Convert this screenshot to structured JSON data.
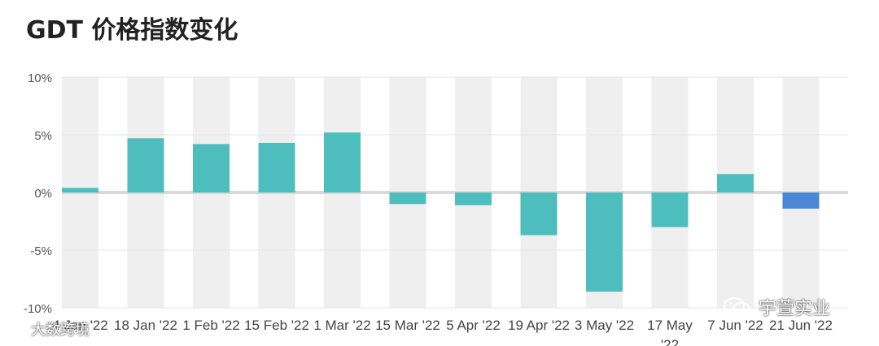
{
  "title": "GDT 价格指数变化",
  "chart_data": {
    "type": "bar",
    "title": "GDT 价格指数变化",
    "xlabel": "",
    "ylabel": "",
    "ylim": [
      -10,
      10
    ],
    "yticks": [
      10,
      5,
      0,
      -5,
      -10
    ],
    "ytick_labels": [
      "10%",
      "5%",
      "0%",
      "-5%",
      "-10%"
    ],
    "grid": true,
    "categories": [
      "4 Jan '22",
      "18 Jan '22",
      "1 Feb '22",
      "15 Feb '22",
      "1 Mar '22",
      "15 Mar '22",
      "5 Apr '22",
      "19 Apr '22",
      "3 May '22",
      "17 May '22",
      "7 Jun '22",
      "21 Jun '22"
    ],
    "values": [
      0.4,
      4.7,
      4.2,
      4.3,
      5.2,
      -1.0,
      -1.1,
      -3.7,
      -8.6,
      -3.0,
      1.6,
      -1.4
    ],
    "colors": {
      "default": "#4dbdbd",
      "highlight": "#4a88d6",
      "highlight_index": 11,
      "band": "#efefef",
      "zero_line": "#d9d9d9"
    }
  },
  "watermarks": {
    "right": "宇萱实业",
    "left": "大数跨境"
  }
}
